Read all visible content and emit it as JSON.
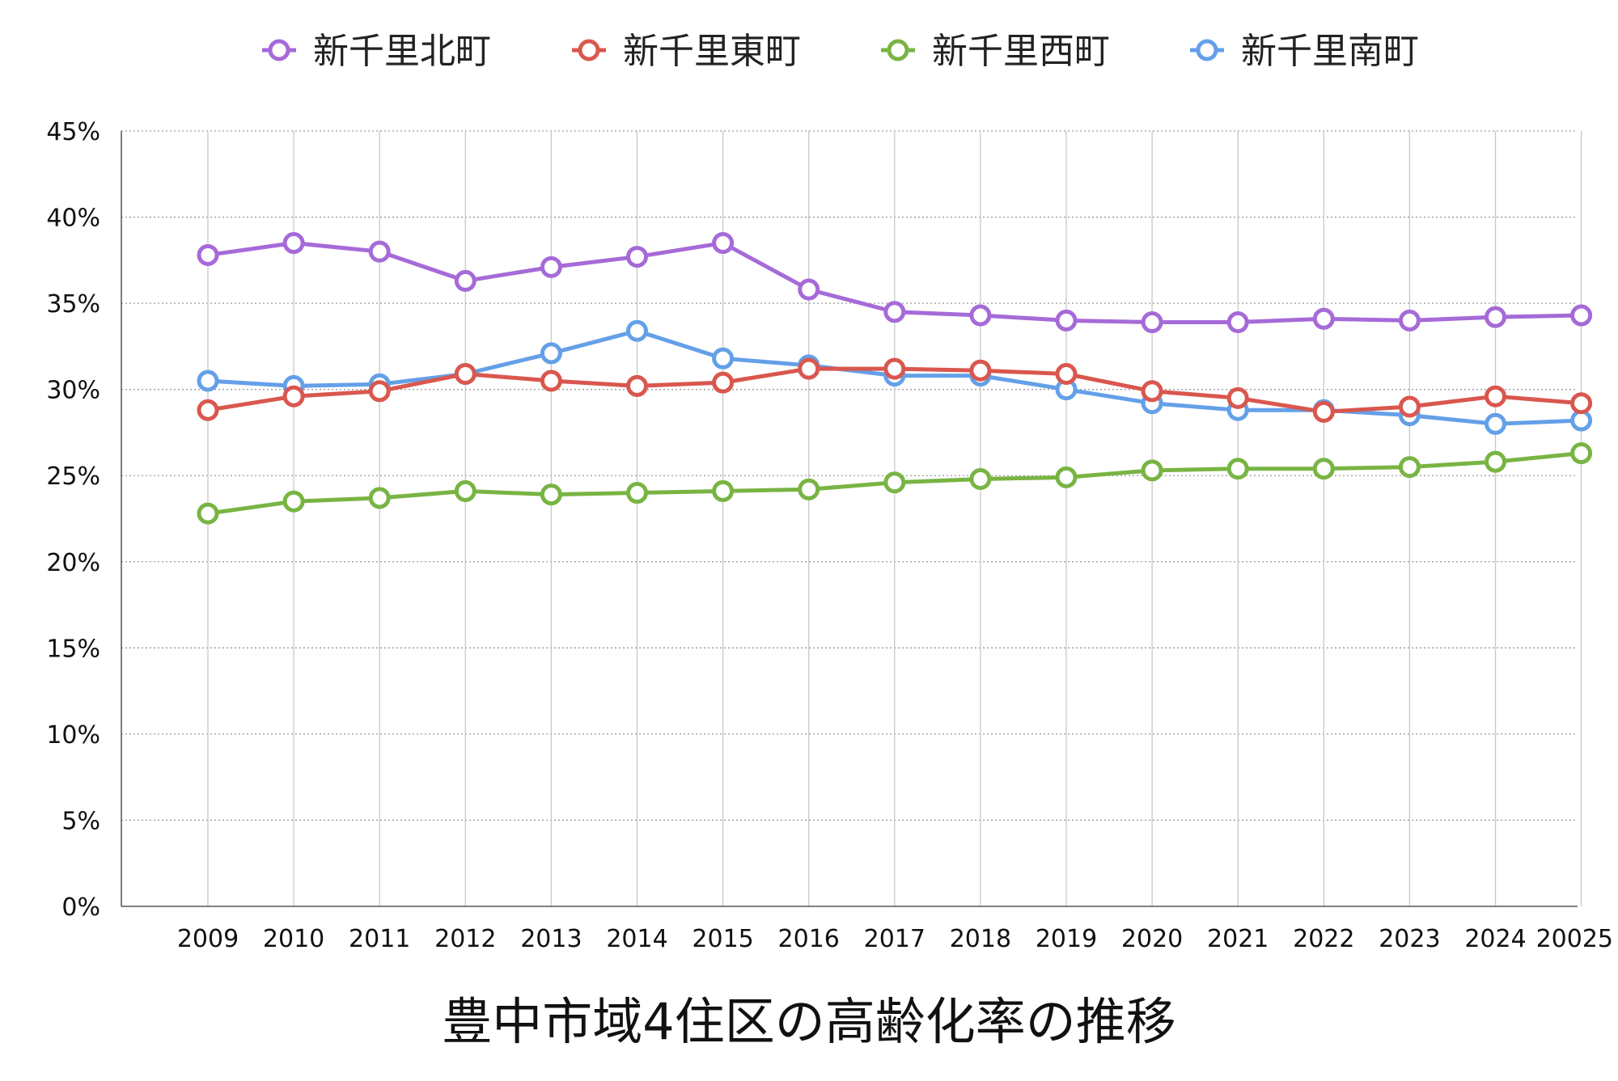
{
  "chart_data": {
    "type": "line",
    "title": "豊中市域4住区の高齢化率の推移",
    "categories": [
      "2009",
      "2010",
      "2011",
      "2012",
      "2013",
      "2014",
      "2015",
      "2016",
      "2017",
      "2018",
      "2019",
      "2020",
      "2021",
      "2022",
      "2023",
      "2024",
      "20025"
    ],
    "ylim": [
      0,
      45
    ],
    "yticks": [
      "0%",
      "5%",
      "10%",
      "15%",
      "20%",
      "25%",
      "30%",
      "35%",
      "40%",
      "45%"
    ],
    "ytick_values": [
      0,
      5,
      10,
      15,
      20,
      25,
      30,
      35,
      40,
      45
    ],
    "grid": true,
    "legend_position": "top",
    "series": [
      {
        "name": "新千里北町",
        "color": "#a66ad8",
        "values": [
          37.8,
          38.5,
          38.0,
          36.3,
          37.1,
          37.7,
          38.5,
          35.8,
          34.5,
          34.3,
          34.0,
          33.9,
          33.9,
          34.1,
          34.0,
          34.2,
          34.3
        ]
      },
      {
        "name": "新千里東町",
        "color": "#d9574e",
        "values": [
          28.8,
          29.6,
          29.9,
          30.9,
          30.5,
          30.2,
          30.4,
          31.2,
          31.2,
          31.1,
          30.9,
          29.9,
          29.5,
          28.7,
          29.0,
          29.6,
          29.2
        ]
      },
      {
        "name": "新千里西町",
        "color": "#78b443",
        "values": [
          22.8,
          23.5,
          23.7,
          24.1,
          23.9,
          24.0,
          24.1,
          24.2,
          24.6,
          24.8,
          24.9,
          25.3,
          25.4,
          25.4,
          25.5,
          25.8,
          26.3
        ]
      },
      {
        "name": "新千里南町",
        "color": "#64a0e8",
        "values": [
          30.5,
          30.2,
          30.3,
          30.9,
          32.1,
          33.4,
          31.8,
          31.4,
          30.8,
          30.8,
          30.0,
          29.2,
          28.8,
          28.8,
          28.5,
          28.0,
          28.2
        ]
      }
    ]
  }
}
